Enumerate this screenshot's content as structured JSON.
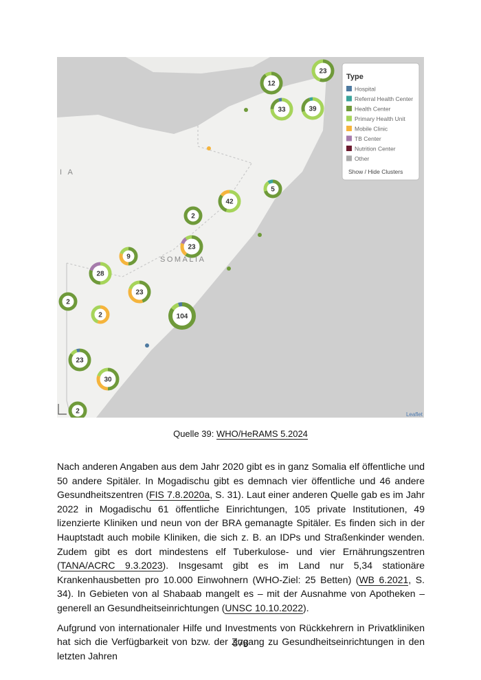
{
  "map": {
    "legend": {
      "title": "Type",
      "items": [
        "Hospital",
        "Referral Health Center",
        "Health Center",
        "Primary Health Unit",
        "Mobile Clinic",
        "TB Center",
        "Nutrition Center",
        "Other"
      ],
      "toggle": "Show / Hide Clusters"
    },
    "clusters": [
      "23",
      "12",
      "33",
      "39",
      "5",
      "42",
      "2",
      "23",
      "9",
      "28",
      "23",
      "2",
      "2",
      "104",
      "23",
      "30",
      "2"
    ],
    "labels": {
      "country": "SOMALIA",
      "partial": "I A"
    },
    "attribution": "Leaflet"
  },
  "caption": {
    "prefix": "Quelle 39: ",
    "link": "WHO/HeRAMS 5.2024"
  },
  "paragraphs": [
    [
      {
        "text": "Nach anderen Angaben aus dem Jahr 2020 gibt es in ganz Somalia elf öffentliche und 50 andere Spitäler. In Mogadischu gibt es demnach vier öffentliche und 46 andere Gesundheitszentren ("
      },
      {
        "link": "FIS 7.8.2020a"
      },
      {
        "text": ", S. 31). Laut einer anderen Quelle gab es im Jahr 2022 in Mogadischu 61 öffentliche Einrichtungen, 105 private Institutionen, 49 lizenzierte Kliniken und neun von der BRA gemanagte Spitäler. Es finden sich in der Hauptstadt auch mobile Kliniken, die sich z. B. an IDPs und Straßenkinder wenden. Zudem gibt es dort mindestens elf Tuberkulose- und vier Ernährungszentren ("
      },
      {
        "link": "TANA/ACRC 9.3.2023"
      },
      {
        "text": "). Insgesamt gibt es im Land nur 5,34 stationäre Krankenhausbetten pro 10.000 Einwohnern (WHO-Ziel: 25 Betten) ("
      },
      {
        "link": "WB 6.2021"
      },
      {
        "text": ", S. 34). In Gebieten von al Shabaab mangelt es – mit der Ausnahme von Apotheken – generell an Gesundheitseinrichtungen ("
      },
      {
        "link": "UNSC 10.10.2022"
      },
      {
        "text": ")."
      }
    ],
    [
      {
        "text": "Aufgrund von internationaler Hilfe und Investments von Rückkehrern in Privatkliniken hat sich die Verfügbarkeit von bzw. der Zugang zu Gesundheitseinrichtungen in den letzten Jahren"
      }
    ]
  ],
  "page_number": "378"
}
